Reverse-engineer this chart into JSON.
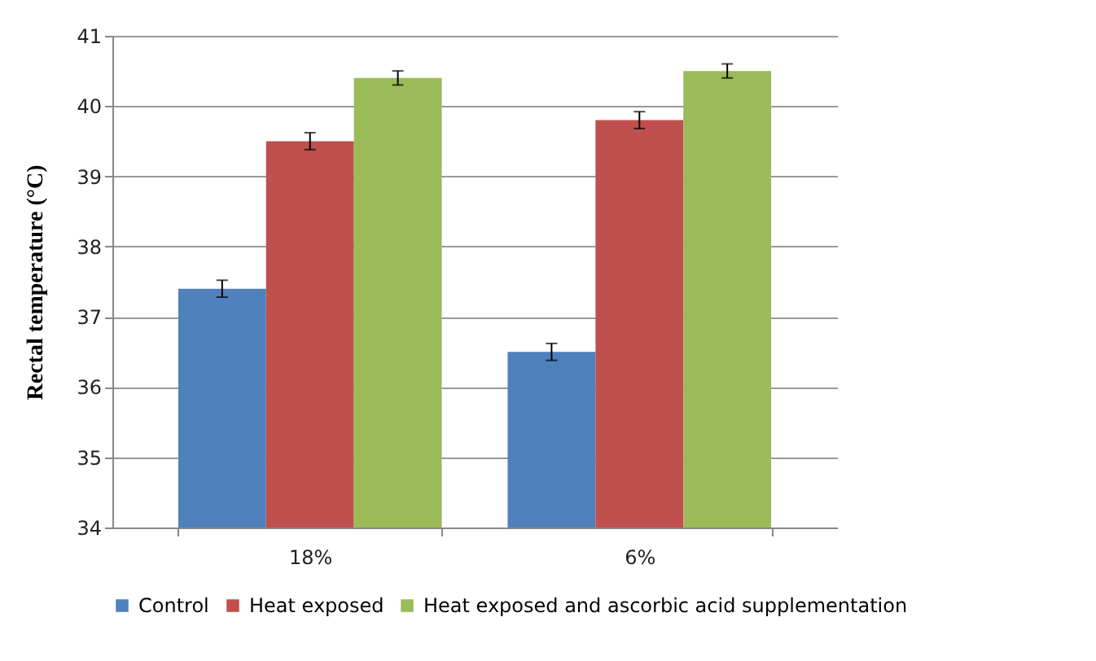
{
  "chart_data": {
    "type": "bar",
    "ylabel": "Rectal temperature (°C)",
    "categories": [
      "18%",
      "6%"
    ],
    "series": [
      {
        "name": "Control",
        "color": "#4f81bd",
        "values": [
          37.4,
          36.5
        ],
        "errors": [
          0.12,
          0.12
        ]
      },
      {
        "name": "Heat exposed",
        "color": "#c0504d",
        "values": [
          39.5,
          39.8
        ],
        "errors": [
          0.12,
          0.12
        ]
      },
      {
        "name": "Heat exposed and ascorbic acid supplementation",
        "color": "#9bbb59",
        "values": [
          40.4,
          40.5
        ],
        "errors": [
          0.1,
          0.1
        ]
      }
    ],
    "ylim": [
      34,
      41
    ],
    "yticks": [
      34,
      35,
      36,
      37,
      38,
      39,
      40,
      41
    ],
    "grid": "y",
    "legend": "bottom"
  }
}
